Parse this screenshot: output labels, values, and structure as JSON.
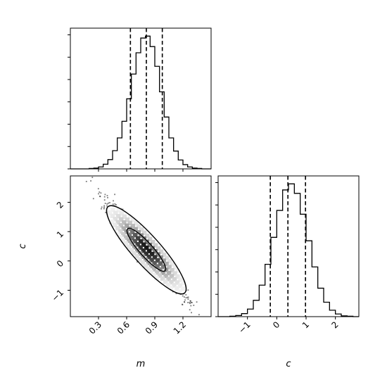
{
  "chart_data": [
    {
      "type": "histogram",
      "panel": "m marginal",
      "parameter": "m",
      "xlim": [
        0.0,
        1.5
      ],
      "yticks_shown": false,
      "quantiles": [
        0.64,
        0.81,
        0.98
      ],
      "bin_edges": [
        0.0,
        0.05,
        0.1,
        0.15,
        0.2,
        0.25,
        0.3,
        0.35,
        0.4,
        0.45,
        0.5,
        0.55,
        0.6,
        0.65,
        0.7,
        0.75,
        0.8,
        0.85,
        0.9,
        0.95,
        1.0,
        1.05,
        1.1,
        1.15,
        1.2,
        1.25,
        1.3,
        1.35,
        1.4,
        1.45,
        1.5
      ],
      "counts": [
        0,
        0,
        0,
        0,
        2,
        4,
        10,
        24,
        48,
        94,
        160,
        246,
        362,
        490,
        600,
        676,
        686,
        632,
        530,
        398,
        268,
        160,
        92,
        46,
        22,
        10,
        4,
        2,
        0,
        0
      ]
    },
    {
      "type": "scatter-density",
      "panel": "m vs c joint",
      "x_parameter": "m",
      "y_parameter": "c",
      "xlabel": "m",
      "ylabel": "c",
      "xlim": [
        0.0,
        1.5
      ],
      "ylim": [
        -1.9,
        2.9
      ],
      "xticks": [
        "0.3",
        "0.6",
        "0.9",
        "1.2"
      ],
      "yticks": [
        "−1",
        "0",
        "1",
        "2"
      ],
      "center": [
        0.81,
        0.38
      ],
      "correlation": "negative",
      "slope": -3.6,
      "contours": [
        "inner",
        "outer"
      ]
    },
    {
      "type": "histogram",
      "panel": "c marginal",
      "parameter": "c",
      "xlabel": "c",
      "xlim": [
        -2.0,
        2.8
      ],
      "xticks": [
        "−1",
        "0",
        "1",
        "2"
      ],
      "yticks_shown": false,
      "quantiles": [
        -0.22,
        0.38,
        0.98
      ],
      "bin_edges": [
        -2.0,
        -1.8,
        -1.6,
        -1.4,
        -1.2,
        -1.0,
        -0.8,
        -0.6,
        -0.4,
        -0.2,
        0.0,
        0.2,
        0.4,
        0.6,
        0.8,
        1.0,
        1.2,
        1.4,
        1.6,
        1.8,
        2.0,
        2.2,
        2.4,
        2.6,
        2.8
      ],
      "counts": [
        0,
        0,
        2,
        6,
        16,
        40,
        86,
        166,
        276,
        418,
        560,
        668,
        700,
        650,
        540,
        400,
        262,
        150,
        76,
        34,
        14,
        4,
        2,
        0
      ]
    }
  ]
}
